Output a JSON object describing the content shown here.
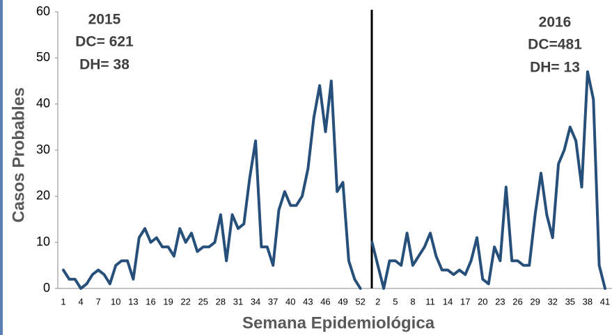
{
  "chart_data": {
    "type": "line",
    "xlabel": "Semana Epidemiológica",
    "ylabel": "Casos Probables",
    "annotations": [
      {
        "lines": [
          "2015",
          "DC= 621",
          "DH= 38"
        ]
      },
      {
        "lines": [
          "2016",
          "DC=481",
          "DH= 13"
        ]
      }
    ],
    "categories": [
      "1",
      null,
      null,
      "4",
      null,
      null,
      "7",
      null,
      null,
      "10",
      null,
      null,
      "13",
      null,
      null,
      "16",
      null,
      null,
      "19",
      null,
      null,
      "22",
      null,
      null,
      "25",
      null,
      null,
      "28",
      null,
      null,
      "31",
      null,
      null,
      "34",
      null,
      null,
      "37",
      null,
      null,
      "40",
      null,
      null,
      "43",
      null,
      null,
      "46",
      null,
      null,
      "49",
      null,
      null,
      "52",
      null,
      null,
      "2",
      null,
      null,
      "5",
      null,
      null,
      "8",
      null,
      null,
      "11",
      null,
      null,
      "14",
      null,
      null,
      "17",
      null,
      null,
      "20",
      null,
      null,
      "23",
      null,
      null,
      "26",
      null,
      null,
      "29",
      null,
      null,
      "32",
      null,
      null,
      "35",
      null,
      null,
      "38",
      null,
      null,
      "41"
    ],
    "series": [
      {
        "name": "Casos Probables",
        "color": "#264f7a",
        "values": [
          4,
          2,
          2,
          0,
          1,
          3,
          4,
          3,
          1,
          5,
          6,
          6,
          2,
          11,
          13,
          10,
          11,
          9,
          9,
          7,
          13,
          10,
          12,
          8,
          9,
          9,
          10,
          16,
          6,
          16,
          13,
          14,
          24,
          32,
          9,
          9,
          5,
          17,
          21,
          18,
          18,
          20,
          26,
          37,
          44,
          34,
          45,
          21,
          23,
          6,
          2,
          0,
          null,
          10,
          5,
          0,
          6,
          6,
          5,
          12,
          5,
          7,
          9,
          12,
          7,
          4,
          4,
          3,
          4,
          3,
          6,
          11,
          2,
          1,
          9,
          6,
          22,
          6,
          6,
          5,
          5,
          16,
          25,
          16,
          11,
          27,
          30,
          35,
          32,
          22,
          47,
          41,
          5,
          0
        ]
      }
    ],
    "ylim": [
      0,
      60
    ],
    "yticks": [
      0,
      10,
      20,
      30,
      40,
      50,
      60
    ],
    "grid": false
  }
}
